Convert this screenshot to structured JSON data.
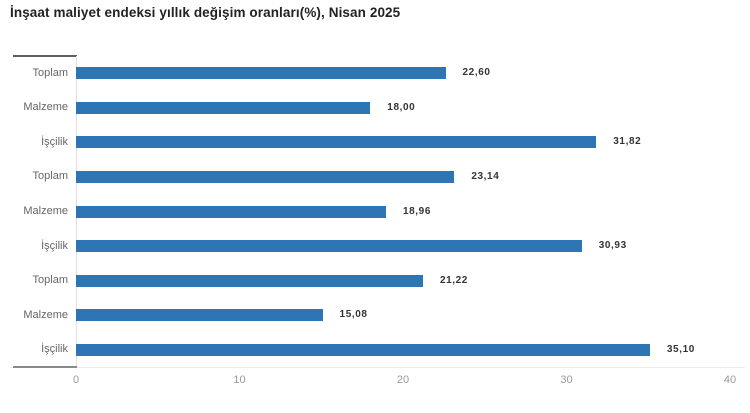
{
  "title": "İnşaat maliyet endeksi yıllık değişim oranları(%), Nisan 2025",
  "chart_data": {
    "type": "bar",
    "orientation": "horizontal",
    "title": "İnşaat maliyet endeksi yıllık değişim oranları(%), Nisan 2025",
    "categories": [
      "Toplam",
      "Malzeme",
      "İşçilik",
      "Toplam",
      "Malzeme",
      "İşçilik",
      "Toplam",
      "Malzeme",
      "İşçilik"
    ],
    "values": [
      22.6,
      18.0,
      31.82,
      23.14,
      18.96,
      30.93,
      21.22,
      15.08,
      35.1
    ],
    "value_labels": [
      "22,60",
      "18,00",
      "31,82",
      "23,14",
      "18,96",
      "30,93",
      "21,22",
      "15,08",
      "35,10"
    ],
    "xlabel": "",
    "ylabel": "",
    "xlim": [
      0,
      40
    ],
    "x_ticks": [
      0,
      10,
      20,
      30,
      40
    ],
    "x_tick_labels": [
      "0",
      "10",
      "20",
      "30",
      "40"
    ],
    "grid": false,
    "legend": false,
    "bar_color": "#2e75b6"
  },
  "colors": {
    "bar": "#2e75b6",
    "title_text": "#222222",
    "category_text": "#666666",
    "value_text": "#333333",
    "tick_text": "#999999",
    "axis_line": "#e0e0e0",
    "axis_cap": "#5f5f5f",
    "background": "#ffffff"
  }
}
